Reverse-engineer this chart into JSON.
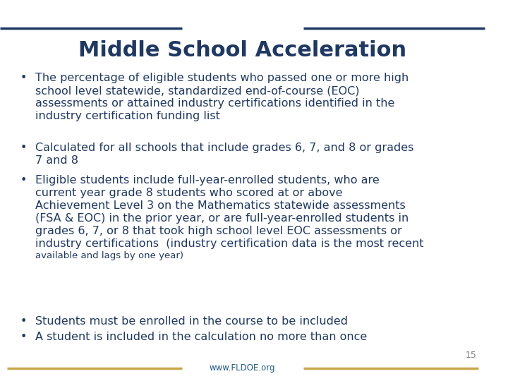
{
  "title": "Middle School Acceleration",
  "title_color": "#1F3864",
  "title_fontsize": 22,
  "background_color": "#FFFFFF",
  "text_color": "#1F3864",
  "bullet_color": "#1F3864",
  "header_line_color": "#1F3864",
  "footer_line_color": "#C9A84C",
  "footer_link": "www.FLDOE.org",
  "footer_link_color": "#1F5C8B",
  "page_number": "15",
  "page_number_color": "#7F7F7F",
  "bullets": [
    "The percentage of eligible students who passed one or more high school level statewide, standardized end-of-course (EOC) assessments or attained industry certifications identified in the industry certification funding list",
    "Calculated for all schools that include grades 6, 7, and 8 or grades 7 and 8",
    "Eligible students include full-year-enrolled students, who are current year grade 8 students who scored at or above Achievement Level 3 on the Mathematics statewide assessments (FSA & EOC) in the prior year, or are full-year-enrolled students in grades 6, 7, or 8 that took high school level EOC assessments or industry certifications (industry certification data is the most recent available and lags by one year)",
    "Students must be enrolled in the course to be included",
    "A student is included in the calculation no more than once"
  ],
  "small_text_note": "(industry certification data is the most recent available and lags by one year)",
  "body_fontsize": 11.5,
  "small_fontsize": 9.5
}
